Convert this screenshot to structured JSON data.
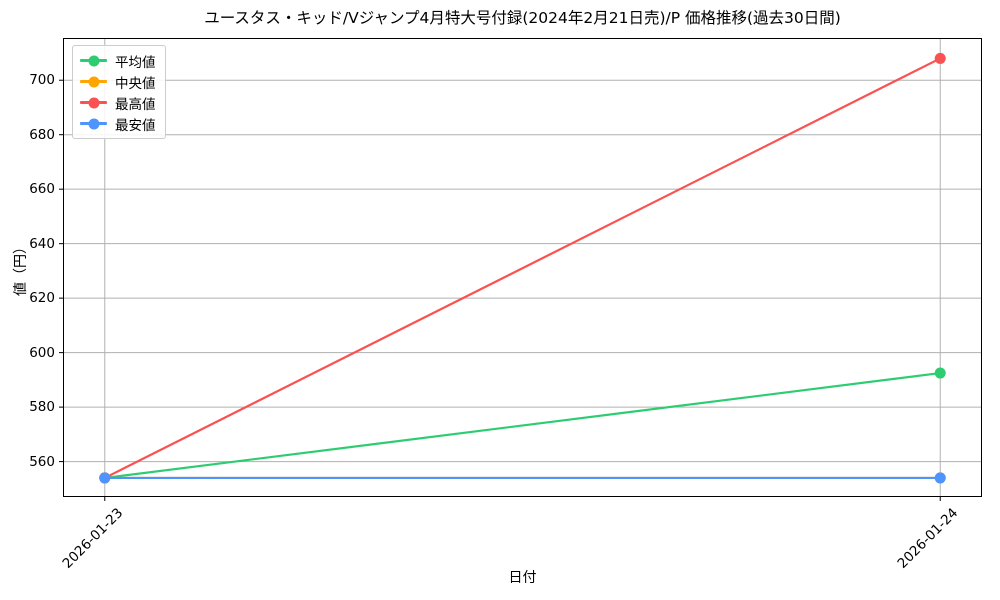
{
  "chart_data": {
    "type": "line",
    "title": "ユースタス・キッド/Vジャンプ4月特大号付録(2024年2月21日売)/P 価格推移(過去30日間)",
    "xlabel": "日付",
    "ylabel": "値（円）",
    "categories": [
      "2026-01-23",
      "2026-01-24"
    ],
    "series": [
      {
        "id": "average",
        "name": "平均値",
        "color": "#2ecc71",
        "values": [
          554,
          592.5
        ]
      },
      {
        "id": "median",
        "name": "中央値",
        "color": "#ffa500",
        "values": [
          554,
          554
        ],
        "note": "line coincides with 最安値 and is hidden beneath it"
      },
      {
        "id": "highest",
        "name": "最高値",
        "color": "#fa5252",
        "values": [
          554,
          708
        ]
      },
      {
        "id": "lowest",
        "name": "最安値",
        "color": "#4d94ff",
        "values": [
          554,
          554
        ]
      }
    ],
    "yticks": [
      560,
      580,
      600,
      620,
      640,
      660,
      680,
      700
    ],
    "ylim": [
      547,
      715.5
    ],
    "xlim": [
      -0.05,
      1.05
    ],
    "grid": true,
    "grid_color": "#b0b0b0",
    "background": "#ffffff",
    "legend_position": "upper left",
    "marker": "circle"
  }
}
